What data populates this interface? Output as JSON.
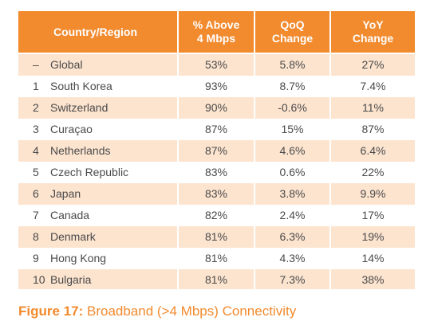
{
  "table": {
    "headers": {
      "country": "Country/Region",
      "above4_line1": "% Above",
      "above4_line2": "4 Mbps",
      "qoq_line1": "QoQ",
      "qoq_line2": "Change",
      "yoy_line1": "YoY",
      "yoy_line2": "Change"
    },
    "rows": [
      {
        "rank": "–",
        "country": "Global",
        "above": "53%",
        "qoq": "5.8%",
        "yoy": "27%"
      },
      {
        "rank": "1",
        "country": "South Korea",
        "above": "93%",
        "qoq": "8.7%",
        "yoy": "7.4%"
      },
      {
        "rank": "2",
        "country": "Switzerland",
        "above": "90%",
        "qoq": "-0.6%",
        "yoy": "11%"
      },
      {
        "rank": "3",
        "country": "Curaçao",
        "above": "87%",
        "qoq": "15%",
        "yoy": "87%"
      },
      {
        "rank": "4",
        "country": "Netherlands",
        "above": "87%",
        "qoq": "4.6%",
        "yoy": "6.4%"
      },
      {
        "rank": "5",
        "country": "Czech Republic",
        "above": "83%",
        "qoq": "0.6%",
        "yoy": "22%"
      },
      {
        "rank": "6",
        "country": "Japan",
        "above": "83%",
        "qoq": "3.8%",
        "yoy": "9.9%"
      },
      {
        "rank": "7",
        "country": "Canada",
        "above": "82%",
        "qoq": "2.4%",
        "yoy": "17%"
      },
      {
        "rank": "8",
        "country": "Denmark",
        "above": "81%",
        "qoq": "6.3%",
        "yoy": "19%"
      },
      {
        "rank": "9",
        "country": "Hong Kong",
        "above": "81%",
        "qoq": "4.3%",
        "yoy": "14%"
      },
      {
        "rank": "10",
        "country": "Bulgaria",
        "above": "81%",
        "qoq": "7.3%",
        "yoy": "38%"
      }
    ]
  },
  "caption": {
    "label": "Figure 17:",
    "text": "Broadband (>4 Mbps) Connectivity"
  },
  "colors": {
    "header_bg": "#f28a2e",
    "stripe_bg": "#fce4cf",
    "caption": "#f28a2e"
  }
}
